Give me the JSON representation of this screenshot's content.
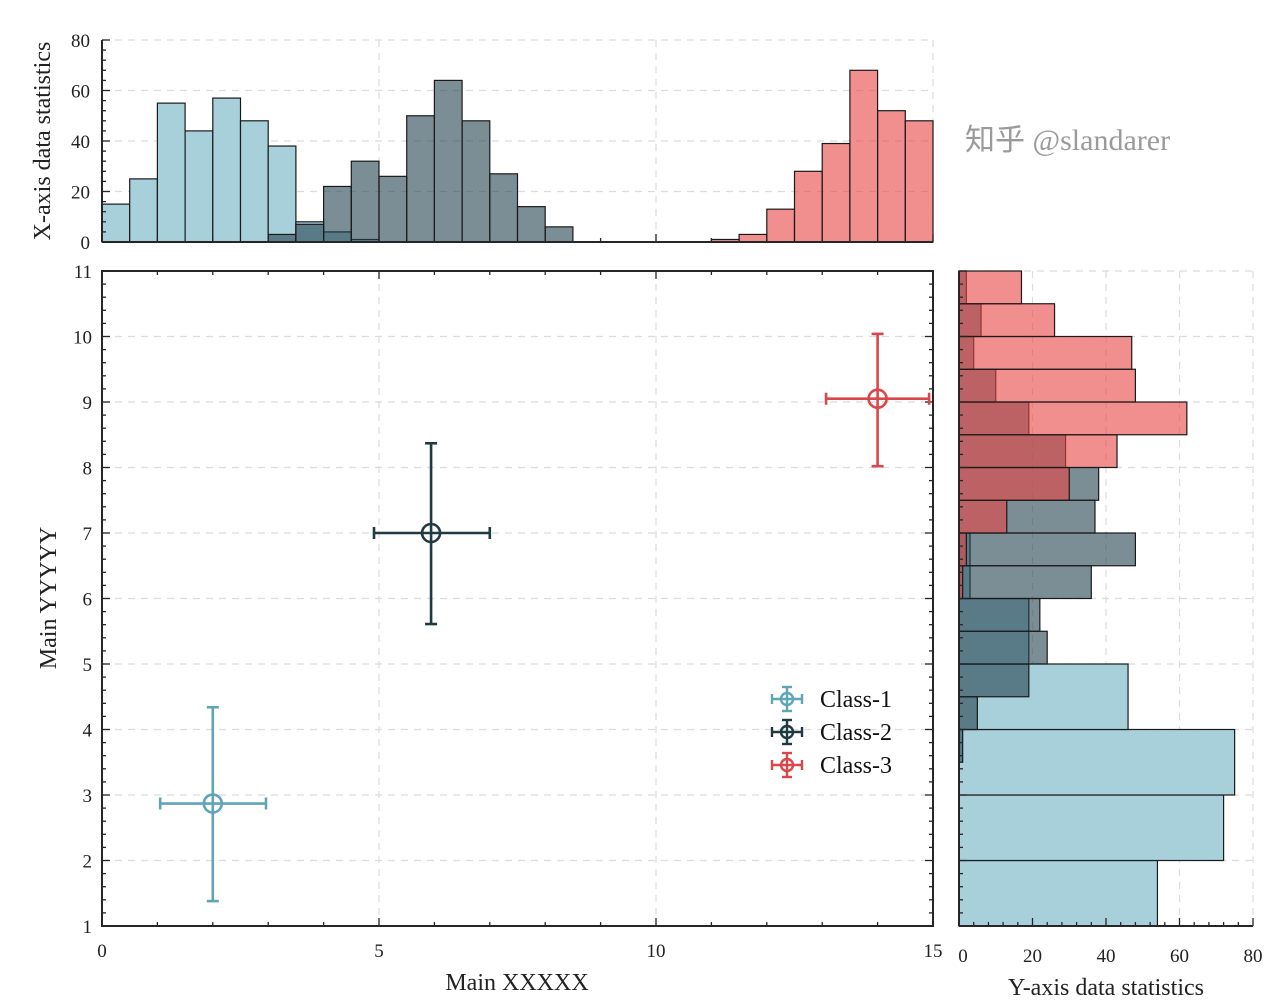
{
  "chart_data": [
    {
      "type": "scatter",
      "subtype": "errorbar",
      "xlabel": "Main XXXXX",
      "ylabel": "Main YYYYY",
      "xlim": [
        0,
        15
      ],
      "ylim": [
        1,
        11
      ],
      "xticks": [
        0,
        5,
        10,
        15
      ],
      "yticks": [
        1,
        2,
        3,
        4,
        5,
        6,
        7,
        8,
        9,
        10,
        11
      ],
      "grid": true,
      "legend_position": "lower-right",
      "series": [
        {
          "name": "Class-1",
          "color": "#5FA5B5",
          "x": 2.0,
          "y": 2.87,
          "xerr": [
            1.05,
            2.96
          ],
          "yerr": [
            1.38,
            4.34
          ]
        },
        {
          "name": "Class-2",
          "color": "#1F3A43",
          "x": 5.94,
          "y": 7.0,
          "xerr": [
            4.91,
            7.0
          ],
          "yerr": [
            5.61,
            8.37
          ]
        },
        {
          "name": "Class-3",
          "color": "#D9474A",
          "x": 14.0,
          "y": 9.05,
          "xerr": [
            13.07,
            14.93
          ],
          "yerr": [
            8.02,
            10.04
          ]
        }
      ]
    },
    {
      "type": "bar",
      "subtype": "histogram",
      "orientation": "vertical",
      "ylabel": "X-axis data statistics",
      "xlim": [
        0,
        15
      ],
      "ylim": [
        0,
        80
      ],
      "yticks": [
        0,
        20,
        40,
        60,
        80
      ],
      "grid": true,
      "series": [
        {
          "class": "Class-1",
          "fill": "#A8D0DB",
          "opacity": 1,
          "bins": [
            [
              0,
              0.5,
              15
            ],
            [
              0.5,
              1,
              25
            ],
            [
              1,
              1.5,
              55
            ],
            [
              1.5,
              2,
              44
            ],
            [
              2,
              2.5,
              57
            ],
            [
              2.5,
              3,
              48
            ],
            [
              3,
              3.5,
              38
            ],
            [
              3.5,
              4,
              8
            ],
            [
              4,
              4.5,
              4
            ],
            [
              4.5,
              5,
              1
            ]
          ]
        },
        {
          "class": "Class-2",
          "fill": "#25434E",
          "opacity": 0.6,
          "bins": [
            [
              3,
              3.5,
              3
            ],
            [
              3.5,
              4,
              7
            ],
            [
              4,
              4.5,
              22
            ],
            [
              4.5,
              5,
              32
            ],
            [
              5,
              5.5,
              26
            ],
            [
              5.5,
              6,
              50
            ],
            [
              6,
              6.5,
              64
            ],
            [
              6.5,
              7,
              48
            ],
            [
              7,
              7.5,
              27
            ],
            [
              7.5,
              8,
              14
            ],
            [
              8,
              8.5,
              6
            ],
            [
              8.5,
              11,
              0
            ]
          ]
        },
        {
          "class": "Class-3",
          "fill": "#E84445",
          "opacity": 0.6,
          "bins": [
            [
              11,
              11.5,
              1
            ],
            [
              11.5,
              12,
              3
            ],
            [
              12,
              12.5,
              13
            ],
            [
              12.5,
              13,
              28
            ],
            [
              13,
              13.5,
              39
            ],
            [
              13.5,
              14,
              68
            ],
            [
              14,
              14.5,
              52
            ],
            [
              14.5,
              15,
              48
            ]
          ]
        }
      ]
    },
    {
      "type": "bar",
      "subtype": "histogram",
      "orientation": "horizontal",
      "xlabel": "Y-axis data statistics",
      "xlim": [
        0,
        80
      ],
      "ylim": [
        1,
        11
      ],
      "xticks": [
        0,
        20,
        40,
        60,
        80
      ],
      "grid": true,
      "series": [
        {
          "class": "Class-1",
          "fill": "#A8D0DB",
          "opacity": 1,
          "bins": [
            [
              1,
              2,
              54
            ],
            [
              2,
              3,
              72
            ],
            [
              3,
              4,
              75
            ],
            [
              4,
              5,
              46
            ],
            [
              5,
              6,
              19
            ],
            [
              6,
              7,
              3
            ]
          ]
        },
        {
          "class": "Class-2",
          "fill": "#25434E",
          "opacity": 0.6,
          "bins": [
            [
              3.5,
              4,
              1
            ],
            [
              4,
              4.5,
              5
            ],
            [
              4.5,
              5,
              19
            ],
            [
              5,
              5.5,
              24
            ],
            [
              5.5,
              6,
              22
            ],
            [
              6,
              6.5,
              36
            ],
            [
              6.5,
              7,
              48
            ],
            [
              7,
              7.5,
              37
            ],
            [
              7.5,
              8,
              38
            ],
            [
              8,
              8.5,
              29
            ],
            [
              8.5,
              9,
              19
            ],
            [
              9,
              9.5,
              10
            ],
            [
              9.5,
              10,
              4
            ],
            [
              10,
              10.5,
              6
            ],
            [
              10.5,
              11,
              2
            ]
          ]
        },
        {
          "class": "Class-3",
          "fill": "#E84445",
          "opacity": 0.6,
          "bins": [
            [
              6,
              6.5,
              1
            ],
            [
              6.5,
              7,
              2
            ],
            [
              7,
              7.5,
              13
            ],
            [
              7.5,
              8,
              30
            ],
            [
              8,
              8.5,
              43
            ],
            [
              8.5,
              9,
              62
            ],
            [
              9,
              9.5,
              48
            ],
            [
              9.5,
              10,
              47
            ],
            [
              10,
              10.5,
              26
            ],
            [
              10.5,
              11,
              17
            ]
          ]
        }
      ]
    }
  ],
  "watermark": "知乎 @slandarer"
}
